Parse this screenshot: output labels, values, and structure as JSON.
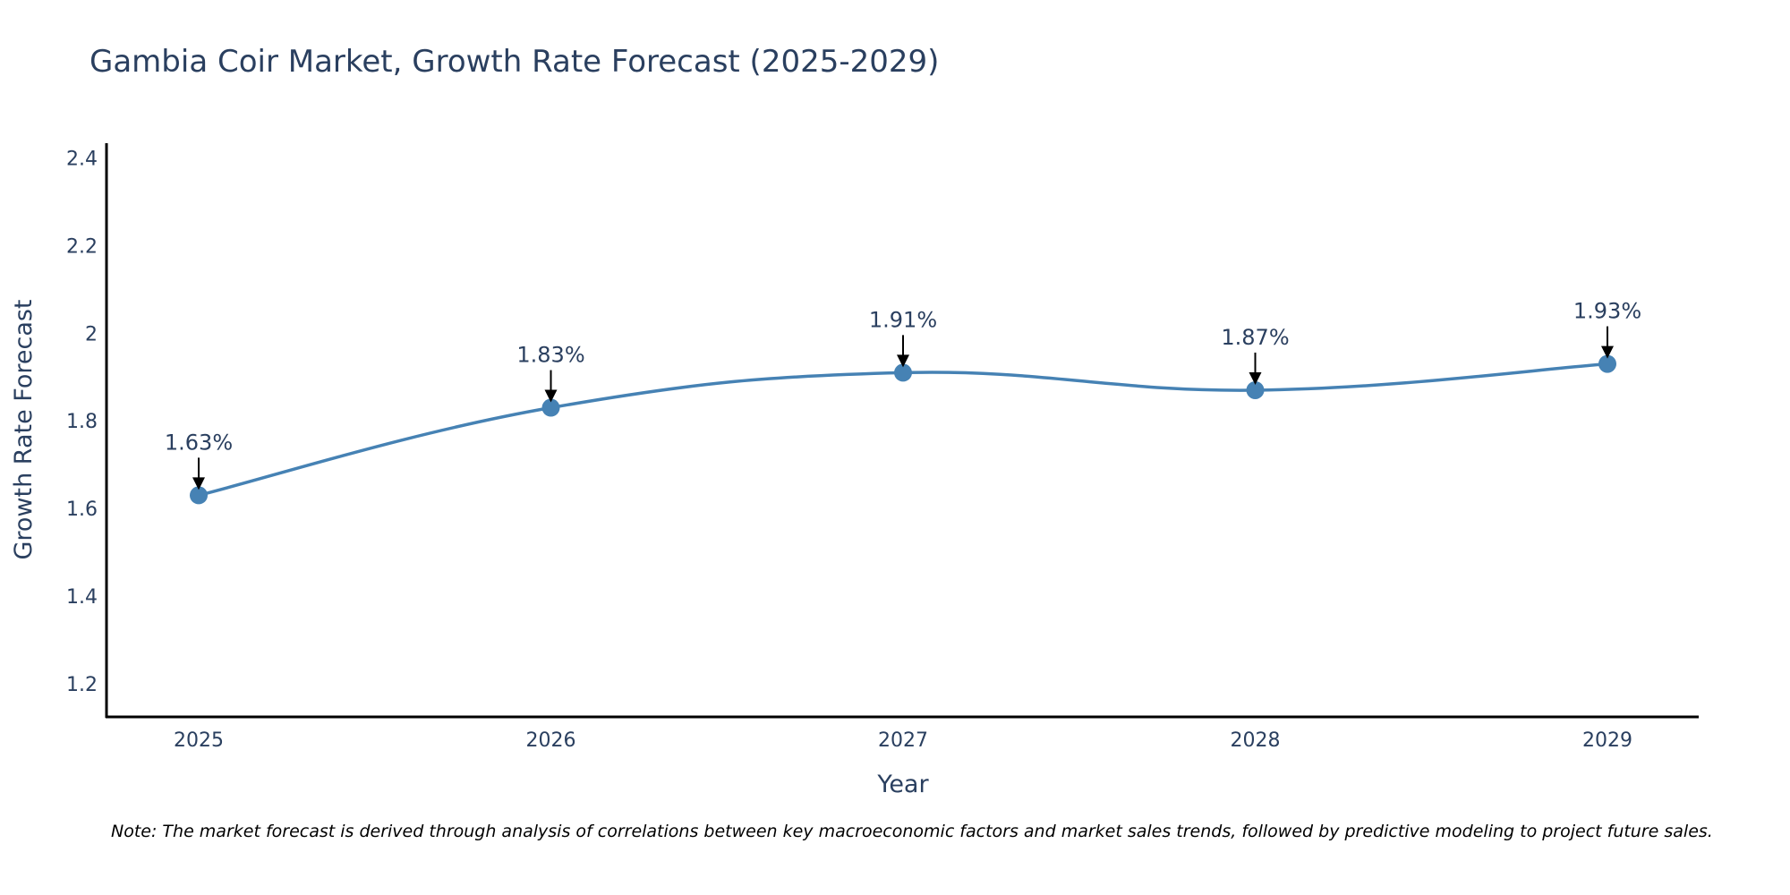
{
  "chart_data": {
    "type": "line",
    "title": "Gambia Coir Market, Growth Rate Forecast (2025-2029)",
    "xlabel": "Year",
    "ylabel": "Growth Rate Forecast",
    "categories": [
      "2025",
      "2026",
      "2027",
      "2028",
      "2029"
    ],
    "series": [
      {
        "name": "Growth Rate Forecast",
        "values": [
          1.63,
          1.83,
          1.91,
          1.87,
          1.93
        ],
        "color": "#4682b4"
      }
    ],
    "data_labels": [
      "1.63%",
      "1.83%",
      "1.91%",
      "1.87%",
      "1.93%"
    ],
    "y_ticks": [
      1.2,
      1.4,
      1.6,
      1.8,
      2.0,
      2.2,
      2.4
    ],
    "y_tick_labels": [
      "1.2",
      "1.4",
      "1.6",
      "1.8",
      "2",
      "2.2",
      "2.4"
    ],
    "ylim": [
      1.126,
      2.434
    ],
    "grid": false,
    "line_shape": "spline"
  },
  "note": "Note: The market forecast is derived through analysis of correlations between key macroeconomic factors and market sales trends, followed by predictive modeling to project future sales."
}
